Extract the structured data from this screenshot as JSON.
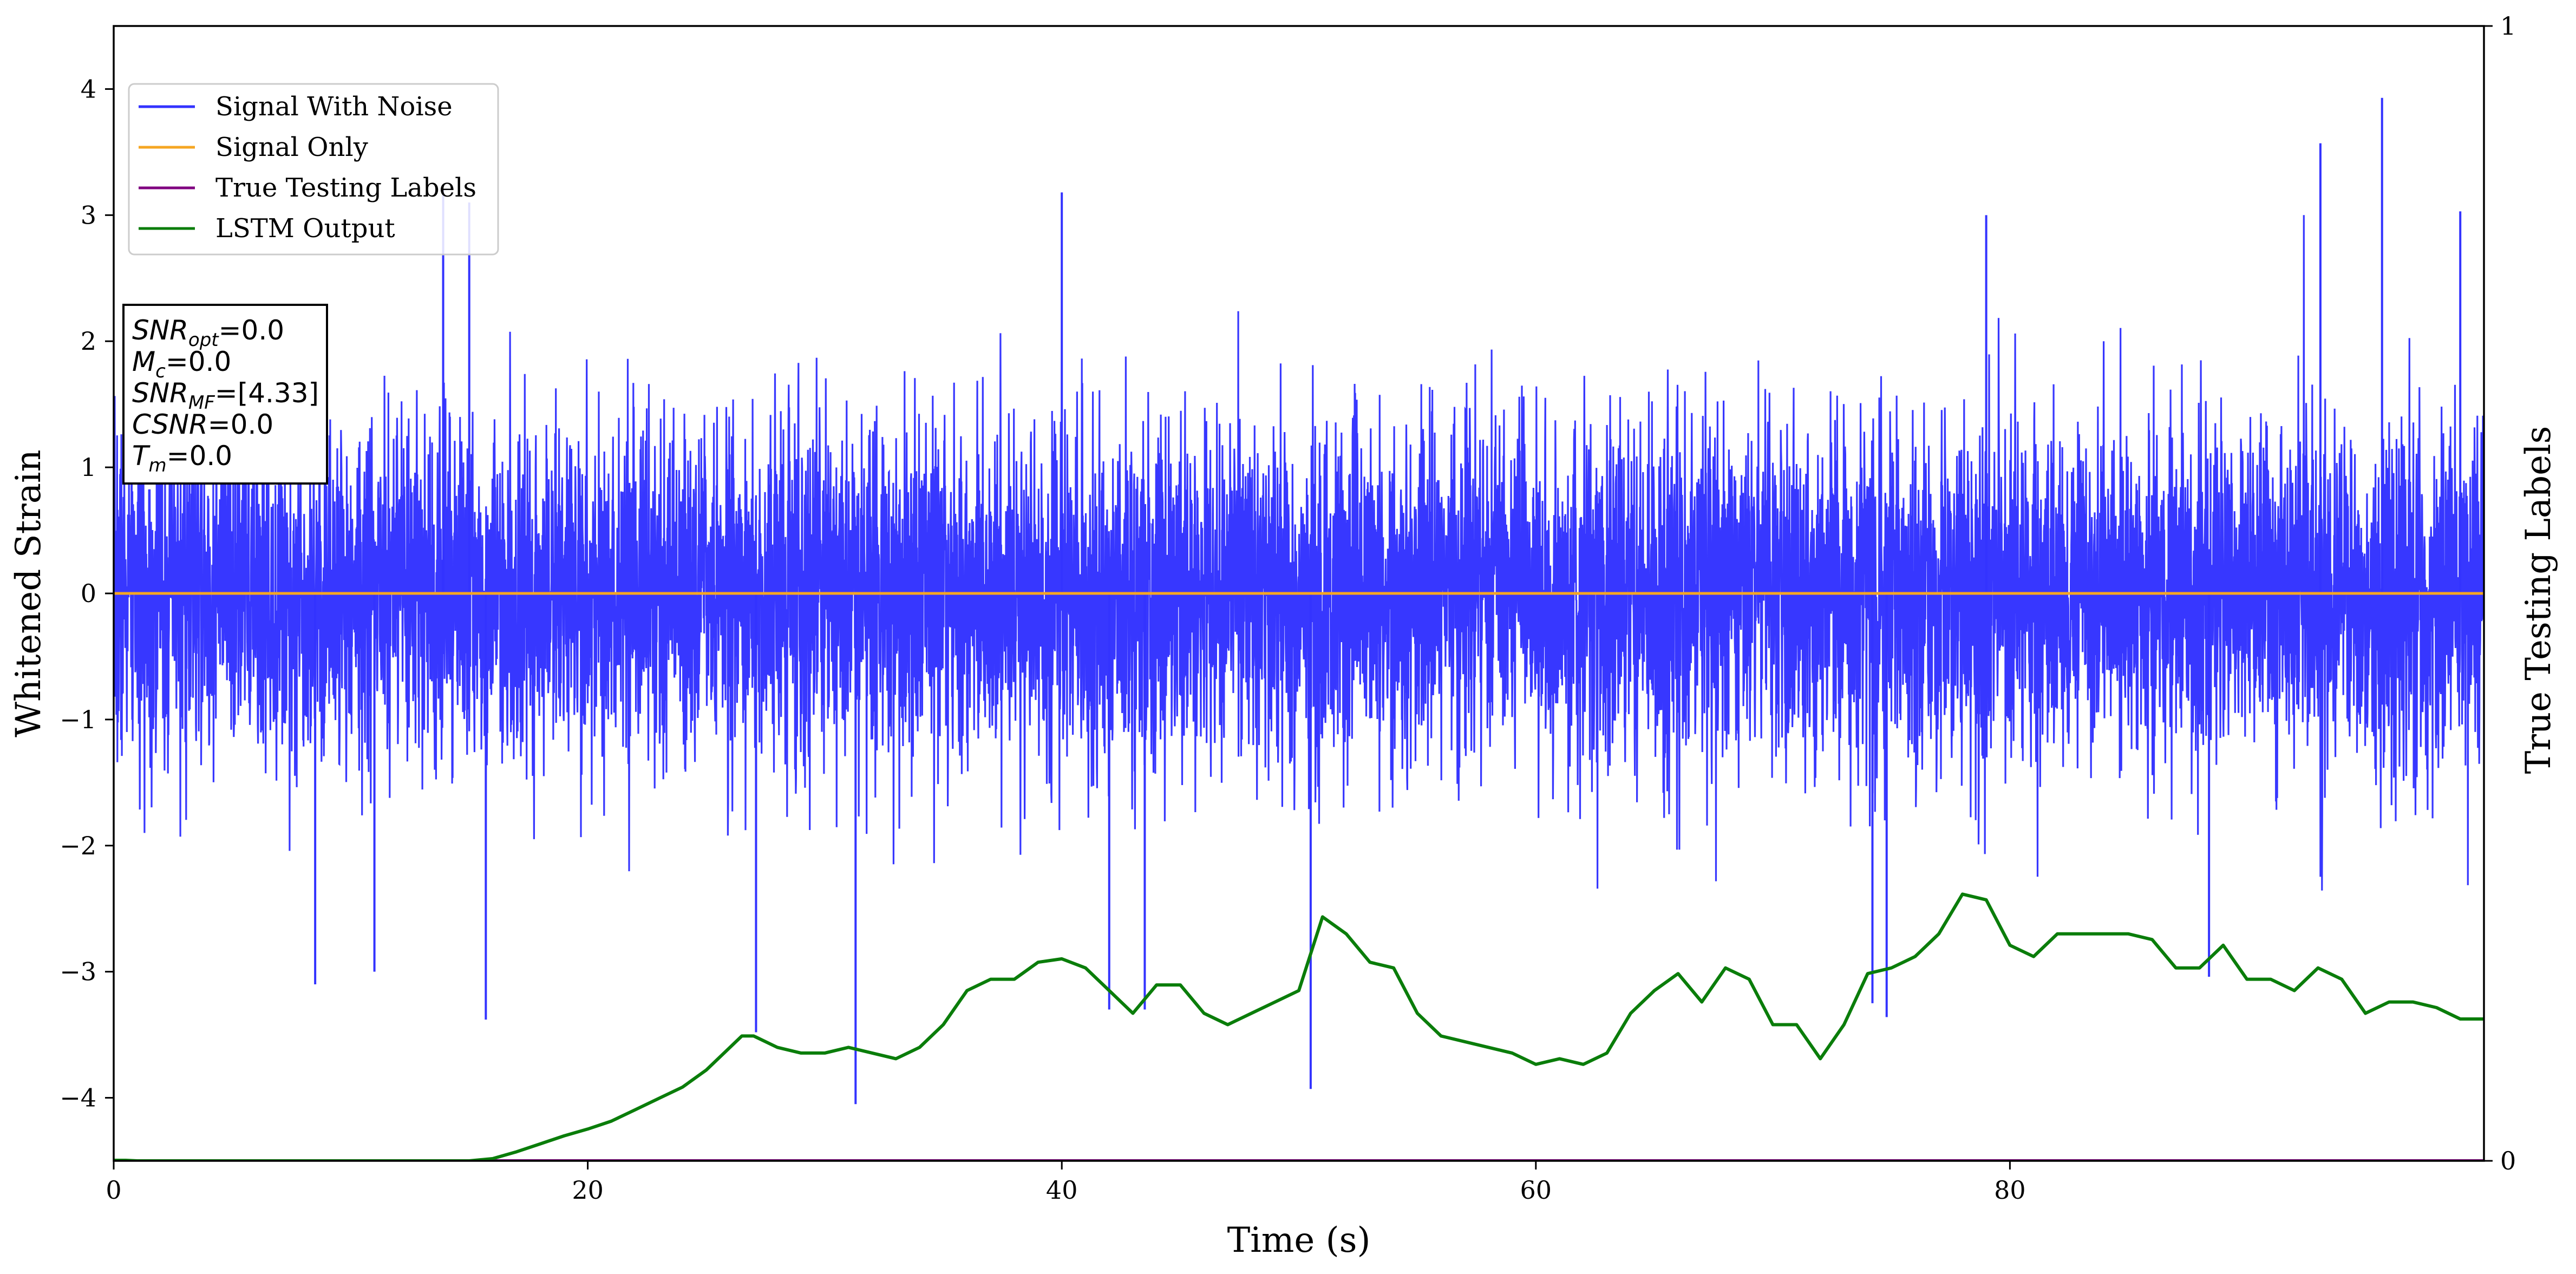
{
  "chart_data": {
    "type": "line",
    "xlabel": "Time (s)",
    "ylabel": "Whitened Strain",
    "ylabel_right": "True Testing Labels",
    "xlim": [
      0,
      100
    ],
    "ylim": [
      -4.5,
      4.5
    ],
    "ylim_right": [
      0,
      1
    ],
    "x_ticks": [
      0,
      20,
      40,
      60,
      80
    ],
    "y_ticks": [
      -4,
      -3,
      -2,
      -1,
      0,
      1,
      2,
      3,
      4
    ],
    "y_ticks_right": [
      0,
      1
    ],
    "grid": false,
    "legend_position": "top-left",
    "legend": [
      "Signal With Noise",
      "Signal Only",
      "True Testing Labels",
      "LSTM Output"
    ],
    "colors": {
      "signal_with_noise": "#3333ff",
      "signal_only": "#f5a623",
      "true_testing_labels": "#800080",
      "lstm_output": "#0a7d0a"
    },
    "annotation": {
      "snr_opt": {
        "label": "SNR",
        "sub": "opt",
        "value": "=0.0"
      },
      "mc": {
        "label": "M",
        "sub": "c",
        "value": "=0.0"
      },
      "snr_mf": {
        "label": "SNR",
        "sub": "MF",
        "value": "=[4.33]"
      },
      "csnr": {
        "label": "CSNR",
        "sub": "",
        "value": "=0.0"
      },
      "tm": {
        "label": "T",
        "sub": "m",
        "value": "=0.0"
      }
    },
    "series": [
      {
        "name": "Signal With Noise",
        "kind": "noise",
        "x_range": [
          0,
          100
        ],
        "std": 0.68,
        "notable_spikes": [
          {
            "x": 8.5,
            "y": -3.1
          },
          {
            "x": 11.0,
            "y": -3.0
          },
          {
            "x": 13.9,
            "y": 3.2
          },
          {
            "x": 15.0,
            "y": 3.1
          },
          {
            "x": 15.7,
            "y": -3.38
          },
          {
            "x": 27.1,
            "y": -3.48
          },
          {
            "x": 31.3,
            "y": -4.05
          },
          {
            "x": 40.0,
            "y": 3.18
          },
          {
            "x": 42.0,
            "y": -3.3
          },
          {
            "x": 43.5,
            "y": -3.3
          },
          {
            "x": 50.5,
            "y": -3.93
          },
          {
            "x": 74.2,
            "y": -3.25
          },
          {
            "x": 74.8,
            "y": -3.36
          },
          {
            "x": 79.0,
            "y": 3.0
          },
          {
            "x": 88.4,
            "y": -3.04
          },
          {
            "x": 93.1,
            "y": 3.57
          },
          {
            "x": 95.7,
            "y": 3.93
          },
          {
            "x": 99.0,
            "y": 3.03
          }
        ]
      },
      {
        "name": "Signal Only",
        "x": [
          0,
          100
        ],
        "values": [
          0,
          0
        ]
      },
      {
        "name": "True Testing Labels",
        "axis": "right",
        "x": [
          0,
          100
        ],
        "values": [
          0,
          0
        ]
      },
      {
        "name": "LSTM Output",
        "axis": "right",
        "x": [
          0,
          0.5,
          1,
          15,
          16,
          17,
          18,
          19,
          20,
          21,
          22,
          23,
          24,
          25,
          26,
          26.5,
          27,
          28,
          29,
          30,
          31,
          32,
          33,
          34,
          35,
          36,
          37,
          38,
          39,
          40,
          41,
          42,
          43,
          44,
          45,
          46,
          47,
          48,
          49,
          50,
          51,
          52,
          53,
          54,
          55,
          56,
          57,
          58,
          59,
          60,
          61,
          62,
          63,
          64,
          65,
          66,
          67,
          68,
          69,
          70,
          71,
          72,
          73,
          74,
          75,
          76,
          77,
          78,
          79,
          80,
          81,
          82,
          83,
          84,
          85,
          86,
          87,
          88,
          89,
          90,
          91,
          92,
          93,
          94,
          95,
          96,
          97,
          98,
          99,
          100
        ],
        "values": [
          0.0005,
          0.0005,
          0.0,
          0.0,
          0.002,
          0.008,
          0.015,
          0.022,
          0.028,
          0.035,
          0.045,
          0.055,
          0.065,
          0.08,
          0.1,
          0.11,
          0.11,
          0.1,
          0.095,
          0.095,
          0.1,
          0.095,
          0.09,
          0.1,
          0.12,
          0.15,
          0.16,
          0.16,
          0.175,
          0.178,
          0.17,
          0.15,
          0.13,
          0.155,
          0.155,
          0.13,
          0.12,
          0.13,
          0.14,
          0.15,
          0.215,
          0.2,
          0.175,
          0.17,
          0.13,
          0.11,
          0.105,
          0.1,
          0.095,
          0.085,
          0.09,
          0.085,
          0.095,
          0.13,
          0.15,
          0.165,
          0.14,
          0.17,
          0.16,
          0.12,
          0.12,
          0.09,
          0.12,
          0.165,
          0.17,
          0.18,
          0.2,
          0.235,
          0.23,
          0.19,
          0.18,
          0.2,
          0.2,
          0.2,
          0.2,
          0.195,
          0.17,
          0.17,
          0.19,
          0.16,
          0.16,
          0.15,
          0.17,
          0.16,
          0.13,
          0.14,
          0.14,
          0.135,
          0.125,
          0.125
        ]
      }
    ]
  }
}
